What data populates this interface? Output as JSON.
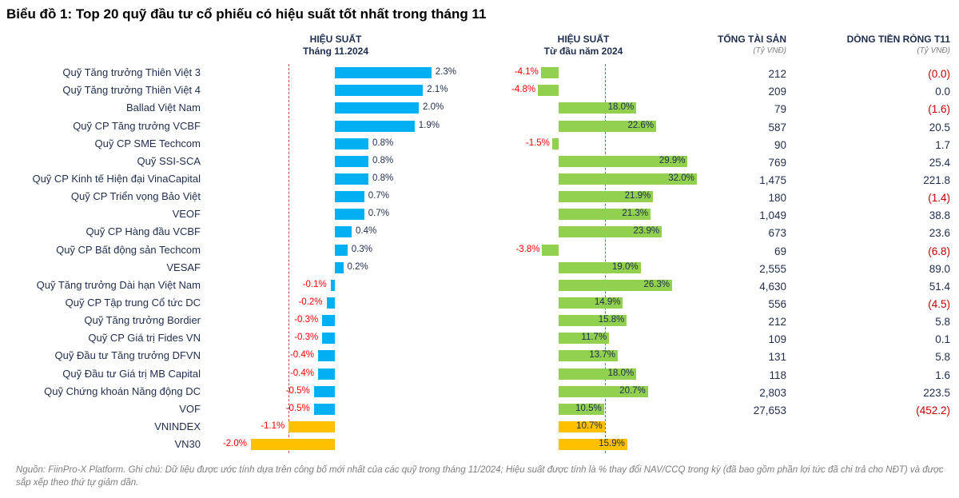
{
  "chart_data": {
    "type": "bar",
    "title": "Biểu đồ 1: Top 20 quỹ đầu tư cổ phiếu có hiệu suất tốt nhất trong tháng 11",
    "headers": {
      "perf_month": [
        "HIỆU SUẤT",
        "Tháng 11.2024"
      ],
      "perf_ytd": [
        "HIỆU SUẤT",
        "Từ đầu năm 2024"
      ],
      "assets": "TỔNG TÀI SẢN",
      "assets_unit": "(Tỷ VNĐ)",
      "flow": "DÒNG TIỀN RÒNG T11",
      "flow_unit": "(Tỷ VNĐ)"
    },
    "colors": {
      "fund_month": "#00b0f0",
      "fund_ytd": "#92d050",
      "index": "#ffc000",
      "positive_label": "#1f2d4e",
      "negative_label": "#ff0000",
      "negative_flow": "#c00000",
      "ref_line": "#c0504d"
    },
    "rows": [
      {
        "name": "Quỹ Tăng trưởng Thiên Việt 3",
        "month": 2.3,
        "month_label": "2.3%",
        "ytd": -4.1,
        "ytd_label": "-4.1%",
        "assets": "212",
        "flow": "(0.0)",
        "flow_neg": true,
        "is_index": false
      },
      {
        "name": "Quỹ Tăng trưởng Thiên Việt 4",
        "month": 2.1,
        "month_label": "2.1%",
        "ytd": -4.8,
        "ytd_label": "-4.8%",
        "assets": "209",
        "flow": "0.0",
        "flow_neg": false,
        "is_index": false
      },
      {
        "name": "Ballad Việt Nam",
        "month": 2.0,
        "month_label": "2.0%",
        "ytd": 18.0,
        "ytd_label": "18.0%",
        "assets": "79",
        "flow": "(1.6)",
        "flow_neg": true,
        "is_index": false
      },
      {
        "name": "Quỹ CP Tăng trưởng VCBF",
        "month": 1.9,
        "month_label": "1.9%",
        "ytd": 22.6,
        "ytd_label": "22.6%",
        "assets": "587",
        "flow": "20.5",
        "flow_neg": false,
        "is_index": false
      },
      {
        "name": "Quỹ CP SME Techcom",
        "month": 0.8,
        "month_label": "0.8%",
        "ytd": -1.5,
        "ytd_label": "-1.5%",
        "assets": "90",
        "flow": "1.7",
        "flow_neg": false,
        "is_index": false
      },
      {
        "name": "Quỹ SSI-SCA",
        "month": 0.8,
        "month_label": "0.8%",
        "ytd": 29.9,
        "ytd_label": "29.9%",
        "assets": "769",
        "flow": "25.4",
        "flow_neg": false,
        "is_index": false
      },
      {
        "name": "Quỹ CP Kinh tế Hiện đại VinaCapital",
        "month": 0.8,
        "month_label": "0.8%",
        "ytd": 32.0,
        "ytd_label": "32.0%",
        "assets": "1,475",
        "flow": "221.8",
        "flow_neg": false,
        "is_index": false
      },
      {
        "name": "Quỹ CP Triển vọng Bảo Việt",
        "month": 0.7,
        "month_label": "0.7%",
        "ytd": 21.9,
        "ytd_label": "21.9%",
        "assets": "180",
        "flow": "(1.4)",
        "flow_neg": true,
        "is_index": false
      },
      {
        "name": "VEOF",
        "month": 0.7,
        "month_label": "0.7%",
        "ytd": 21.3,
        "ytd_label": "21.3%",
        "assets": "1,049",
        "flow": "38.8",
        "flow_neg": false,
        "is_index": false
      },
      {
        "name": "Quỹ CP Hàng đầu VCBF",
        "month": 0.4,
        "month_label": "0.4%",
        "ytd": 23.9,
        "ytd_label": "23.9%",
        "assets": "673",
        "flow": "23.6",
        "flow_neg": false,
        "is_index": false
      },
      {
        "name": "Quỹ CP Bất động sản Techcom",
        "month": 0.3,
        "month_label": "0.3%",
        "ytd": -3.8,
        "ytd_label": "-3.8%",
        "assets": "69",
        "flow": "(6.8)",
        "flow_neg": true,
        "is_index": false
      },
      {
        "name": "VESAF",
        "month": 0.2,
        "month_label": "0.2%",
        "ytd": 19.0,
        "ytd_label": "19.0%",
        "assets": "2,555",
        "flow": "89.0",
        "flow_neg": false,
        "is_index": false
      },
      {
        "name": "Quỹ Tăng trưởng Dài hạn Việt Nam",
        "month": -0.1,
        "month_label": "-0.1%",
        "ytd": 26.3,
        "ytd_label": "26.3%",
        "assets": "4,630",
        "flow": "51.4",
        "flow_neg": false,
        "is_index": false
      },
      {
        "name": "Quỹ CP Tập trung Cổ tức DC",
        "month": -0.2,
        "month_label": "-0.2%",
        "ytd": 14.9,
        "ytd_label": "14.9%",
        "assets": "556",
        "flow": "(4.5)",
        "flow_neg": true,
        "is_index": false
      },
      {
        "name": "Quỹ Tăng trưởng Bordier",
        "month": -0.3,
        "month_label": "-0.3%",
        "ytd": 15.8,
        "ytd_label": "15.8%",
        "assets": "212",
        "flow": "5.8",
        "flow_neg": false,
        "is_index": false
      },
      {
        "name": "Quỹ CP Giá trị Fides VN",
        "month": -0.3,
        "month_label": "-0.3%",
        "ytd": 11.7,
        "ytd_label": "11.7%",
        "assets": "109",
        "flow": "0.1",
        "flow_neg": false,
        "is_index": false
      },
      {
        "name": "Quỹ Đầu tư Tăng trưởng DFVN",
        "month": -0.4,
        "month_label": "-0.4%",
        "ytd": 13.7,
        "ytd_label": "13.7%",
        "assets": "131",
        "flow": "5.8",
        "flow_neg": false,
        "is_index": false
      },
      {
        "name": "Quỹ Đầu tư Giá trị MB Capital",
        "month": -0.4,
        "month_label": "-0.4%",
        "ytd": 18.0,
        "ytd_label": "18.0%",
        "assets": "118",
        "flow": "1.6",
        "flow_neg": false,
        "is_index": false
      },
      {
        "name": "Quỹ Chứng khoán Năng động DC",
        "month": -0.5,
        "month_label": "-0.5%",
        "ytd": 20.7,
        "ytd_label": "20.7%",
        "assets": "2,803",
        "flow": "223.5",
        "flow_neg": false,
        "is_index": false
      },
      {
        "name": "VOF",
        "month": -0.5,
        "month_label": "-0.5%",
        "ytd": 10.5,
        "ytd_label": "10.5%",
        "assets": "27,653",
        "flow": "(452.2)",
        "flow_neg": true,
        "is_index": false
      },
      {
        "name": "VNINDEX",
        "month": -1.1,
        "month_label": "-1.1%",
        "ytd": 10.7,
        "ytd_label": "10.7%",
        "assets": "",
        "flow": "",
        "flow_neg": false,
        "is_index": true
      },
      {
        "name": "VN30",
        "month": -2.0,
        "month_label": "-2.0%",
        "ytd": 15.9,
        "ytd_label": "15.9%",
        "assets": "",
        "flow": "",
        "flow_neg": false,
        "is_index": true
      }
    ],
    "reference_lines": {
      "month": -1.1,
      "ytd": 10.7
    }
  },
  "footnote": "Nguồn: FiinPro-X Platform. Ghi chú: Dữ liệu được ước tính dựa trên công bố mới nhất của các quỹ trong tháng 11/2024; Hiệu suất được tính là % thay đổi NAV/CCQ trong kỳ (đã bao gồm phần lợi tức đã chi trả cho NĐT) và được sắp xếp theo thứ tự giảm dần."
}
